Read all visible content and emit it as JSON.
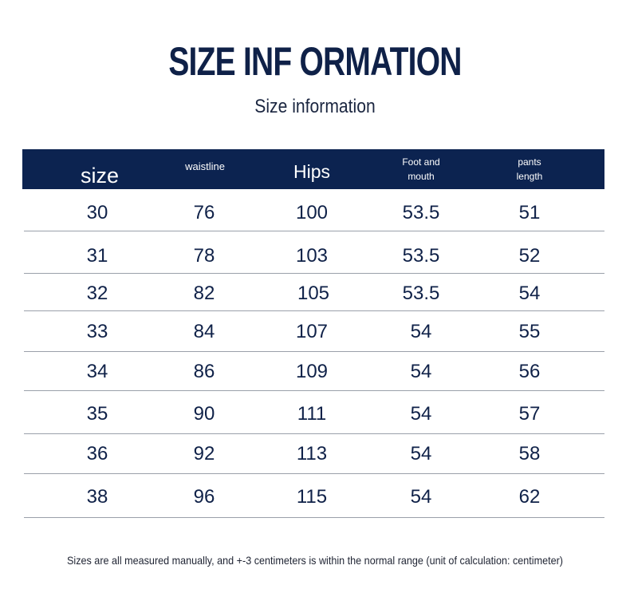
{
  "title": "SIZE INF ORMATION",
  "subtitle": "Size information",
  "table": {
    "headers": {
      "size": "size",
      "waistline": "waistline",
      "hips": "Hips",
      "foot_and_mouth": "Foot and mouth",
      "pants_length": "pants length"
    },
    "rows": [
      [
        "30",
        "76",
        "100",
        "53.5",
        "51"
      ],
      [
        "31",
        "78",
        "103",
        "53.5",
        "52"
      ],
      [
        "32",
        "82",
        "105",
        "53.5",
        "54"
      ],
      [
        "33",
        "84",
        "107",
        "54",
        "55"
      ],
      [
        "34",
        "86",
        "109",
        "54",
        "56"
      ],
      [
        "35",
        "90",
        "111",
        "54",
        "57"
      ],
      [
        "36",
        "92",
        "113",
        "54",
        "58"
      ],
      [
        "38",
        "96",
        "115",
        "54",
        "62"
      ]
    ]
  },
  "footnote": "Sizes are all measured manually, and +-3 centimeters is within the normal range (unit of calculation: centimeter)",
  "colors": {
    "header_bg": "#0c2350",
    "text": "#0f2148",
    "divider": "#9aa0aa"
  }
}
